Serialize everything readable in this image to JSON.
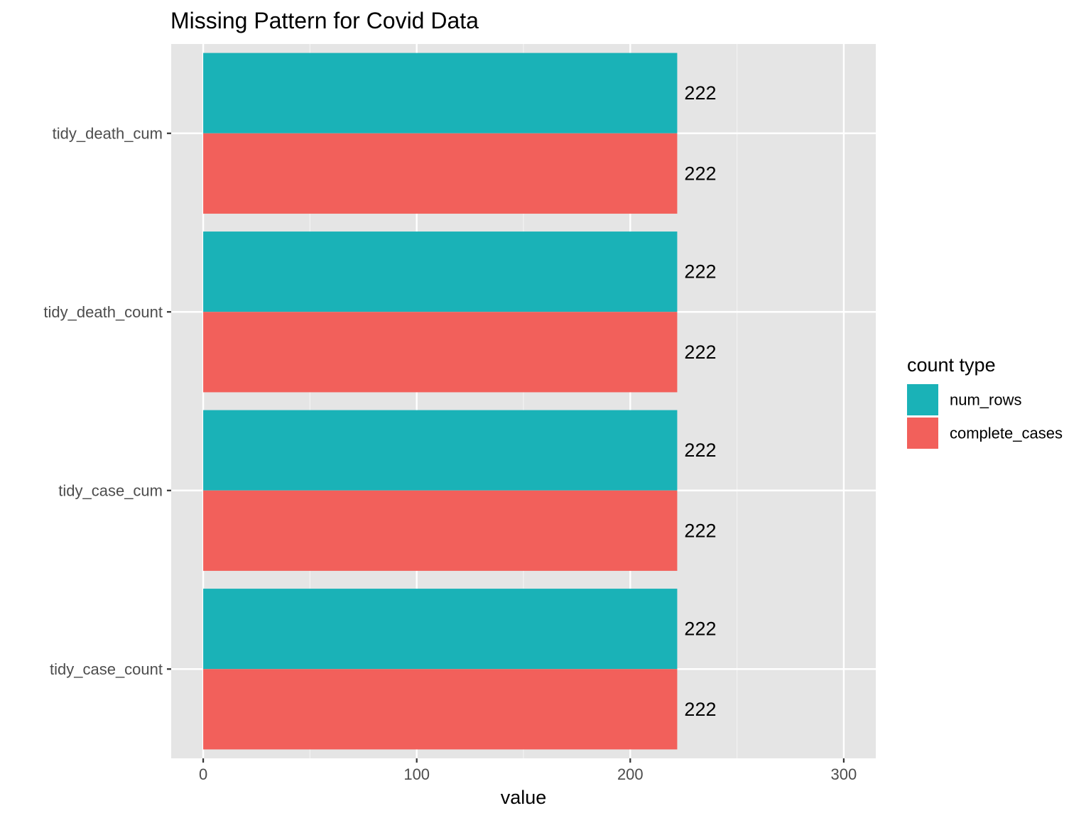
{
  "chart_data": {
    "type": "bar",
    "orientation": "horizontal",
    "title": "Missing Pattern for Covid Data",
    "xlabel": "value",
    "ylabel": "",
    "xlim": [
      -15,
      315
    ],
    "x_ticks": [
      0,
      100,
      200,
      300
    ],
    "grid": true,
    "categories": [
      "tidy_death_cum",
      "tidy_death_count",
      "tidy_case_cum",
      "tidy_case_count"
    ],
    "series": [
      {
        "name": "num_rows",
        "color": "#1AB2B7",
        "values": [
          222,
          222,
          222,
          222
        ]
      },
      {
        "name": "complete_cases",
        "color": "#F2605B",
        "values": [
          222,
          222,
          222,
          222
        ]
      }
    ],
    "data_labels": true,
    "legend": {
      "title": "count type",
      "position": "right"
    }
  }
}
